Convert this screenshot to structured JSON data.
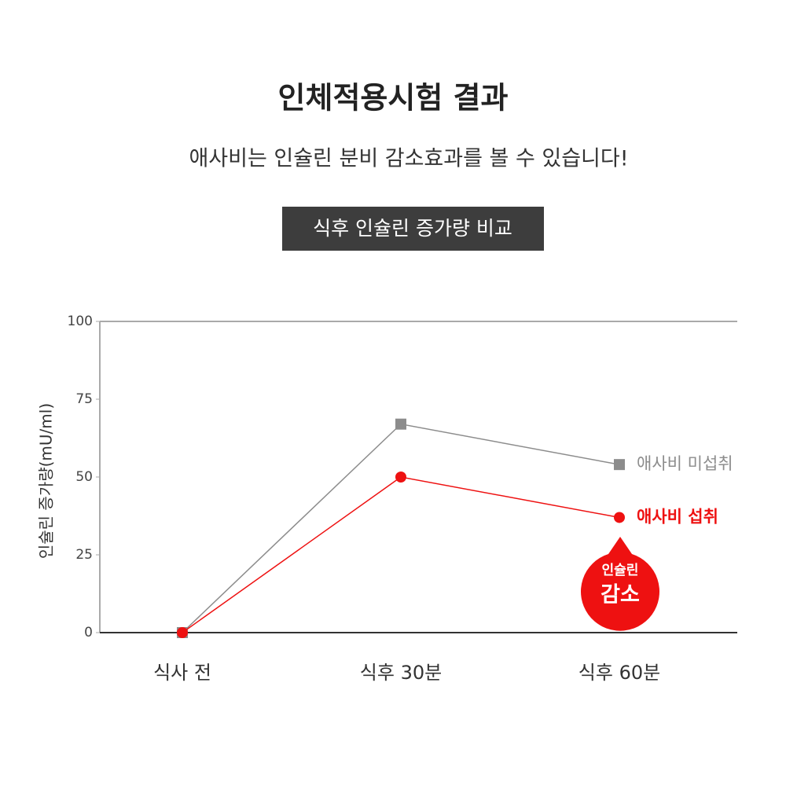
{
  "chart_data": {
    "type": "line",
    "title": "인체적용시험 결과",
    "subtitle": "애사비는 인슐린 분비 감소효과를 볼 수 있습니다!",
    "badge": "식후 인슐린 증가량 비교",
    "y_label": "인슐린 증가량(mU/ml)",
    "categories": [
      "식사 전",
      "식후 30분",
      "식후 60분"
    ],
    "series": [
      {
        "name": "애사비 미섭취",
        "color": "#8c8c8c",
        "marker": "square",
        "values": [
          0,
          67,
          54
        ]
      },
      {
        "name": "애사비 섭취",
        "color": "#ee1111",
        "marker": "circle",
        "values": [
          0,
          50,
          37
        ]
      }
    ],
    "ylim": [
      0,
      100
    ],
    "yticks": [
      0,
      25,
      50,
      75,
      100
    ],
    "annotation": [
      "인슐린",
      "감소"
    ]
  }
}
